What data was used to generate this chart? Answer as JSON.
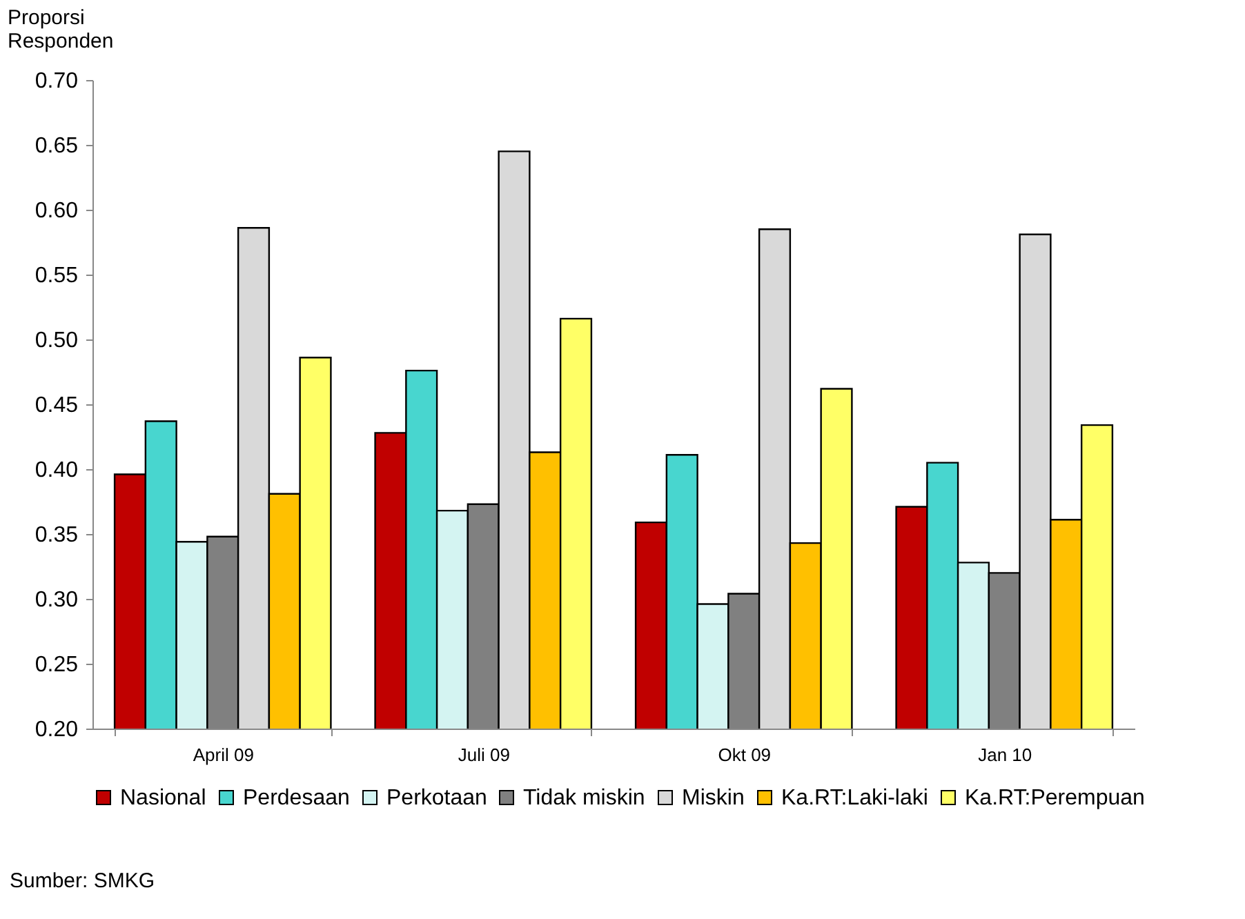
{
  "chart_data": {
    "type": "bar",
    "ylabel": "Proporsi Responden",
    "categories": [
      "April 09",
      "Juli 09",
      "Okt 09",
      "Jan 10"
    ],
    "series": [
      {
        "name": "Nasional",
        "color": "#c00000",
        "values": [
          0.396,
          0.428,
          0.359,
          0.371
        ]
      },
      {
        "name": "Perdesaan",
        "color": "#48d6cf",
        "values": [
          0.437,
          0.476,
          0.411,
          0.405
        ]
      },
      {
        "name": "Perkotaan",
        "color": "#d4f4f2",
        "values": [
          0.344,
          0.368,
          0.296,
          0.328
        ]
      },
      {
        "name": "Tidak miskin",
        "color": "#808080",
        "values": [
          0.348,
          0.373,
          0.304,
          0.32
        ]
      },
      {
        "name": "Miskin",
        "color": "#d9d9d9",
        "values": [
          0.586,
          0.645,
          0.585,
          0.581
        ]
      },
      {
        "name": "Ka.RT:Laki-laki",
        "color": "#ffc000",
        "values": [
          0.381,
          0.413,
          0.343,
          0.361
        ]
      },
      {
        "name": "Ka.RT:Perempuan",
        "color": "#ffff66",
        "values": [
          0.486,
          0.516,
          0.462,
          0.434
        ]
      }
    ],
    "ylim": [
      0.2,
      0.7
    ],
    "yticks": [
      {
        "value": 0.2,
        "label": "0.20"
      },
      {
        "value": 0.25,
        "label": "0.25"
      },
      {
        "value": 0.3,
        "label": "0.30"
      },
      {
        "value": 0.35,
        "label": "0.35"
      },
      {
        "value": 0.4,
        "label": "0.40"
      },
      {
        "value": 0.45,
        "label": "0.45"
      },
      {
        "value": 0.5,
        "label": "0.50"
      },
      {
        "value": 0.55,
        "label": "0.55"
      },
      {
        "value": 0.6,
        "label": "0.60"
      },
      {
        "value": 0.65,
        "label": "0.65"
      },
      {
        "value": 0.7,
        "label": "0.70"
      }
    ],
    "grid": false,
    "legend": "bottom",
    "annotations": [
      "Sumber: SMKG"
    ]
  }
}
